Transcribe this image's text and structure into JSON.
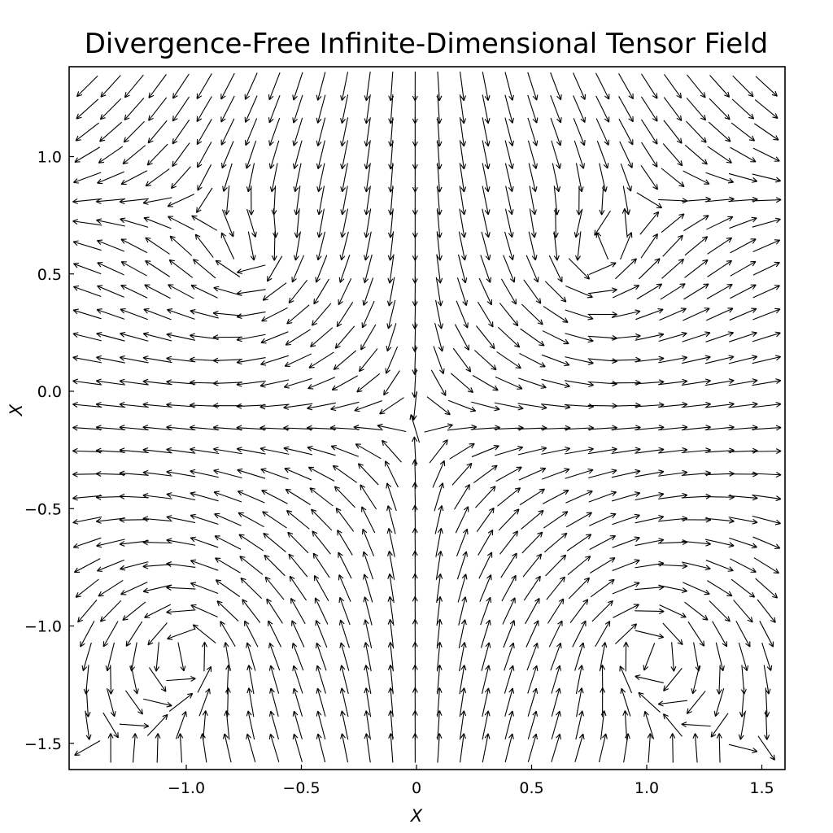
{
  "chart_data": {
    "type": "quiver",
    "title": "Divergence-Free Infinite-Dimensional Tensor Field",
    "xlabel": "X",
    "ylabel": "X",
    "xlim": [
      -1.5,
      1.6
    ],
    "ylim": [
      -1.62,
      1.35
    ],
    "x_ticks": [
      -1.0,
      -0.5,
      0,
      0.5,
      1.0,
      1.5
    ],
    "x_tick_labels": [
      "−1.0",
      "−0.5",
      "0",
      "0.5",
      "1.0",
      "1.5"
    ],
    "y_ticks": [
      1.0,
      0.5,
      0.0,
      -0.5,
      -1.0,
      -1.5
    ],
    "y_tick_labels": [
      "1.0",
      "0.5",
      "0.0",
      "−0.5",
      "−1.0",
      "−1.5"
    ],
    "grid": false,
    "legend": "none",
    "arrow_color": "#000000",
    "grid_x_range": [
      -1.43,
      1.52
    ],
    "grid_y_range": [
      -1.52,
      1.3
    ],
    "grid_count": 30,
    "vortices": [
      {
        "x": -0.68,
        "y": 0.53,
        "sense": "clockwise"
      },
      {
        "x": 0.72,
        "y": 0.53,
        "sense": "counterclockwise"
      },
      {
        "x": -0.95,
        "y": -1.08,
        "sense": "counterclockwise"
      },
      {
        "x": 0.95,
        "y": -1.08,
        "sense": "clockwise"
      }
    ],
    "stagnation_point": {
      "x": 0,
      "y": -0.12
    }
  }
}
